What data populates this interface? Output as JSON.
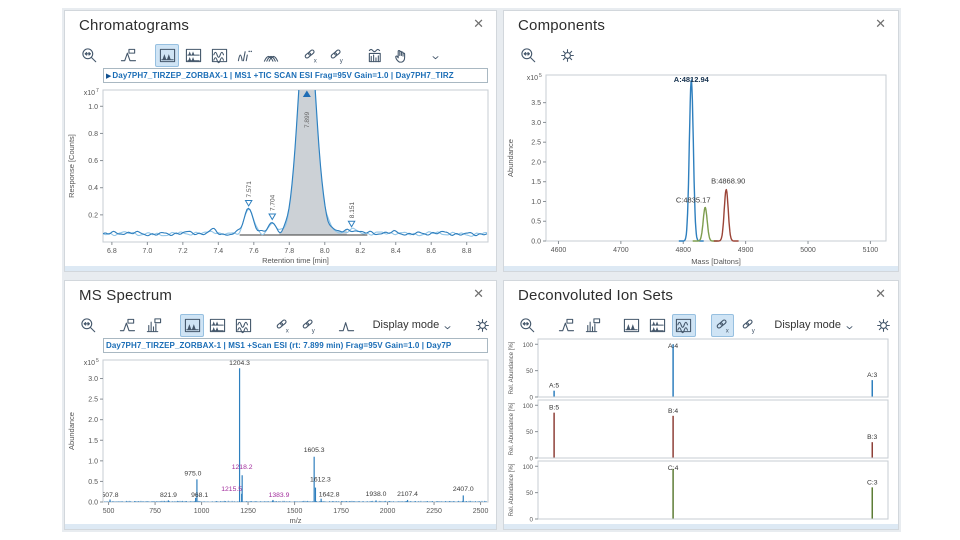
{
  "ui": {
    "close_glyph": "✕",
    "trace_marker": "▶",
    "accent_color": "#1f6db5",
    "active_tool_bg": "#cfe4f5",
    "highlight_label_color": "#a12b9b"
  },
  "panels": {
    "chromatograms": {
      "title": "Chromatograms",
      "toolbar": [
        {
          "icon": "zoom-out"
        },
        {
          "icon": "peak-region",
          "gap": true
        },
        {
          "icon": "overlay-mode",
          "gap": true,
          "active": true
        },
        {
          "icon": "stacked-mode"
        },
        {
          "icon": "stacked-overlap-mode"
        },
        {
          "icon": "line-points-mode"
        },
        {
          "icon": "overlay-curves-mode"
        },
        {
          "icon": "unlink-x",
          "gap": true
        },
        {
          "icon": "link-y"
        },
        {
          "icon": "wave-histogram",
          "gap": true
        },
        {
          "icon": "hand"
        },
        {
          "icon": "caret-down",
          "gap": true,
          "small": true
        }
      ]
    },
    "components": {
      "title": "Components",
      "toolbar": [
        {
          "icon": "zoom-out"
        },
        {
          "icon": "settings",
          "gap": true
        }
      ]
    },
    "ms_spectrum": {
      "title": "MS Spectrum",
      "toolbar": [
        {
          "icon": "zoom-out"
        },
        {
          "icon": "peak-region",
          "gap": true
        },
        {
          "icon": "histogram-flag"
        },
        {
          "icon": "overlay-mode",
          "gap": true,
          "active": true
        },
        {
          "icon": "stacked-mode"
        },
        {
          "icon": "stacked-overlap-mode"
        },
        {
          "icon": "unlink-x",
          "gap": true
        },
        {
          "icon": "link-y"
        },
        {
          "icon": "baseline-peak",
          "gap": true
        },
        {
          "label": "Display mode",
          "gap": true
        },
        {
          "icon": "caret-down",
          "small": true
        },
        {
          "icon": "settings",
          "gap": true
        }
      ]
    },
    "ion_sets": {
      "title": "Deconvoluted Ion Sets",
      "toolbar": [
        {
          "icon": "zoom-out"
        },
        {
          "icon": "peak-region",
          "gap": true
        },
        {
          "icon": "histogram-flag"
        },
        {
          "icon": "overlay-mode",
          "gap": true
        },
        {
          "icon": "stacked-mode"
        },
        {
          "icon": "stacked-overlap-mode",
          "active": true
        },
        {
          "icon": "unlink-x",
          "gap": true,
          "active": true
        },
        {
          "icon": "link-y"
        },
        {
          "label": "Display mode",
          "gap": true
        },
        {
          "icon": "caret-down",
          "small": true
        },
        {
          "icon": "settings",
          "gap": true
        }
      ]
    }
  },
  "chart_data": [
    {
      "id": "chromatogram",
      "type": "line",
      "trace_header": "Day7PH7_TIRZEP_ZORBAX-1 | MS1 +TIC SCAN ESI Frag=95V Gain=1.0 | Day7PH7_TIRZ",
      "xlabel": "Retention time [min]",
      "ylabel": "Response [Counts]",
      "y_multiplier": "x10",
      "y_exponent": "7",
      "xlim": [
        6.75,
        8.92
      ],
      "ylim": [
        0,
        1.12
      ],
      "xticks": [
        "6.8",
        "7.0",
        "7.2",
        "7.4",
        "7.6",
        "7.8",
        "8.0",
        "8.2",
        "8.4",
        "8.6",
        "8.8"
      ],
      "yticks": [
        "0.2",
        "0.4",
        "0.6",
        "0.8",
        "1.0"
      ],
      "baseline_level": 0.062,
      "line_color": "#2e7fbe",
      "secondary_line_color": "#93c6e8",
      "fill_color": "#ccd1d6",
      "peaks": [
        {
          "rt": 7.571,
          "height": 0.185,
          "sigma": 0.025,
          "label": "7.571"
        },
        {
          "rt": 7.704,
          "height": 0.085,
          "sigma": 0.022,
          "label": "7.704"
        },
        {
          "rt": 7.899,
          "height": 1.62,
          "sigma": 0.048,
          "label": "7.899",
          "clipped": true,
          "filled": true
        },
        {
          "rt": 8.151,
          "height": 0.032,
          "sigma": 0.032,
          "label": "8.151"
        }
      ],
      "minor_features": [
        {
          "rt": 7.37,
          "h": 0.028,
          "sigma": 0.022
        },
        {
          "rt": 7.95,
          "h": 0.05,
          "sigma": 0.08
        },
        {
          "rt": 8.41,
          "h": 0.012,
          "sigma": 0.03
        }
      ]
    },
    {
      "id": "components",
      "type": "line",
      "xlabel": "Mass [Daltons]",
      "ylabel": "Abundance",
      "y_multiplier": "x10",
      "y_exponent": "5",
      "xlim": [
        4580,
        5125
      ],
      "ylim": [
        0,
        4.2
      ],
      "xticks": [
        "4600",
        "4700",
        "4800",
        "4900",
        "5000",
        "5100"
      ],
      "yticks": [
        "0.0",
        "0.5",
        "1.0",
        "1.5",
        "2.0",
        "2.5",
        "3.0",
        "3.5"
      ],
      "peaks": [
        {
          "mass": 4812.94,
          "height": 4.08,
          "sigma": 3.2,
          "color": "#2e7fbe",
          "label": "A:4812.94",
          "label_y": 4.02,
          "label_dx": 0,
          "bold": true
        },
        {
          "mass": 4835.17,
          "height": 0.85,
          "sigma": 3.2,
          "color": "#7d9d4e",
          "label": "C:4835.17",
          "label_y": 0.98,
          "label_dx": -12,
          "bold": false
        },
        {
          "mass": 4868.9,
          "height": 1.3,
          "sigma": 3.2,
          "color": "#9b4437",
          "label": "B:4868.90",
          "label_y": 1.45,
          "label_dx": 2,
          "bold": false
        }
      ]
    },
    {
      "id": "ms_spectrum",
      "type": "stick",
      "trace_header": "Day7PH7_TIRZEP_ZORBAX-1 | MS1 +Scan ESI (rt: 7.899 min) Frag=95V Gain=1.0 | Day7P",
      "xlabel": "m/z",
      "ylabel": "Abundance",
      "y_multiplier": "x10",
      "y_exponent": "5",
      "xlim": [
        470,
        2540
      ],
      "ylim": [
        0,
        3.45
      ],
      "xticks": [
        "500",
        "750",
        "1000",
        "1250",
        "1500",
        "1750",
        "2000",
        "2250",
        "2500"
      ],
      "yticks": [
        "0.0",
        "0.5",
        "1.0",
        "1.5",
        "2.0",
        "2.5",
        "3.0"
      ],
      "stick_color": "#2e7fbe",
      "label_color": "#3a3a3a",
      "highlight_label_color": "#a12b9b",
      "sticks": [
        {
          "mz": 507.8,
          "h": 0.06,
          "label": "507.8",
          "label_y": 0.12
        },
        {
          "mz": 821.9,
          "h": 0.04,
          "label": "821.9",
          "label_y": 0.12
        },
        {
          "mz": 968.1,
          "h": 0.1,
          "label": "968.1",
          "label_y": 0.12,
          "label_dx": 4
        },
        {
          "mz": 975.0,
          "h": 0.55,
          "label": "975.0",
          "label_y": 0.64,
          "label_dx": -4
        },
        {
          "mz": 1204.3,
          "h": 3.25,
          "label": "1204.3",
          "label_y": 3.33
        },
        {
          "mz": 1215.5,
          "h": 0.2,
          "label": "1215.5",
          "label_y": 0.27,
          "label_dx": -10,
          "highlight": true
        },
        {
          "mz": 1218.2,
          "h": 0.65,
          "label": "1218.2",
          "label_y": 0.8,
          "highlight": true
        },
        {
          "mz": 1383.9,
          "h": 0.05,
          "label": "1383.9",
          "label_y": 0.12,
          "label_dx": 6,
          "highlight": true
        },
        {
          "mz": 1605.3,
          "h": 1.1,
          "label": "1605.3",
          "label_y": 1.22
        },
        {
          "mz": 1612.3,
          "h": 0.35,
          "label": "1612.3",
          "label_y": 0.5,
          "label_dx": 5
        },
        {
          "mz": 1642.8,
          "h": 0.08,
          "label": "1642.8",
          "label_y": 0.13,
          "label_dx": 8
        },
        {
          "mz": 1938.0,
          "h": 0.04,
          "label": "1938.0",
          "label_y": 0.14
        },
        {
          "mz": 2107.4,
          "h": 0.05,
          "label": "2107.4",
          "label_y": 0.14
        },
        {
          "mz": 2407.0,
          "h": 0.16,
          "label": "2407.0",
          "label_y": 0.27
        }
      ]
    },
    {
      "id": "ion_sets",
      "type": "stick-multi",
      "ylabel": "Rel. Abundance [%]",
      "ylim": [
        0,
        110
      ],
      "yticks": [
        "0",
        "50",
        "100"
      ],
      "subplots": [
        {
          "series": "A",
          "color": "#2e7fbe",
          "sticks": [
            {
              "x": 0.046,
              "h": 12,
              "label": "A:5"
            },
            {
              "x": 0.386,
              "h": 100,
              "label": "A:4"
            },
            {
              "x": 0.955,
              "h": 32,
              "label": "A:3"
            }
          ]
        },
        {
          "series": "B",
          "color": "#8e4038",
          "sticks": [
            {
              "x": 0.046,
              "h": 86,
              "label": "B:5"
            },
            {
              "x": 0.386,
              "h": 80,
              "label": "B:4"
            },
            {
              "x": 0.955,
              "h": 30,
              "label": "B:3"
            }
          ]
        },
        {
          "series": "C",
          "color": "#5d7d36",
          "sticks": [
            {
              "x": 0.386,
              "h": 95,
              "label": "C:4"
            },
            {
              "x": 0.955,
              "h": 60,
              "label": "C:3"
            }
          ]
        }
      ]
    }
  ]
}
